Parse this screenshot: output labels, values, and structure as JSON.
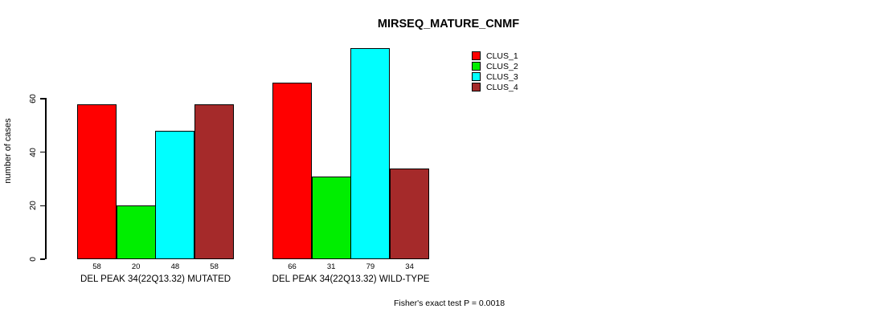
{
  "title": "MIRSEQ_MATURE_CNMF",
  "chart_data": {
    "type": "bar",
    "title": "MIRSEQ_MATURE_CNMF",
    "xlabel": "",
    "ylabel": "number of cases",
    "ylim": [
      0,
      60
    ],
    "yticks": [
      0,
      20,
      40,
      60
    ],
    "grid": false,
    "legend_position": "top-right",
    "categories": [
      "DEL PEAK 34(22Q13.32) MUTATED",
      "DEL PEAK 34(22Q13.32) WILD-TYPE"
    ],
    "series": [
      {
        "name": "CLUS_1",
        "color": "#FF0000",
        "values": [
          58,
          66
        ]
      },
      {
        "name": "CLUS_2",
        "color": "#00EE00",
        "values": [
          20,
          31
        ]
      },
      {
        "name": "CLUS_3",
        "color": "#00FFFF",
        "values": [
          48,
          79
        ]
      },
      {
        "name": "CLUS_4",
        "color": "#A52A2A",
        "values": [
          58,
          34
        ]
      }
    ],
    "bar_value_labels": [
      [
        58,
        20,
        48,
        58
      ],
      [
        66,
        31,
        79,
        34
      ]
    ],
    "annotation": "Fisher's exact test P = 0.0018"
  }
}
